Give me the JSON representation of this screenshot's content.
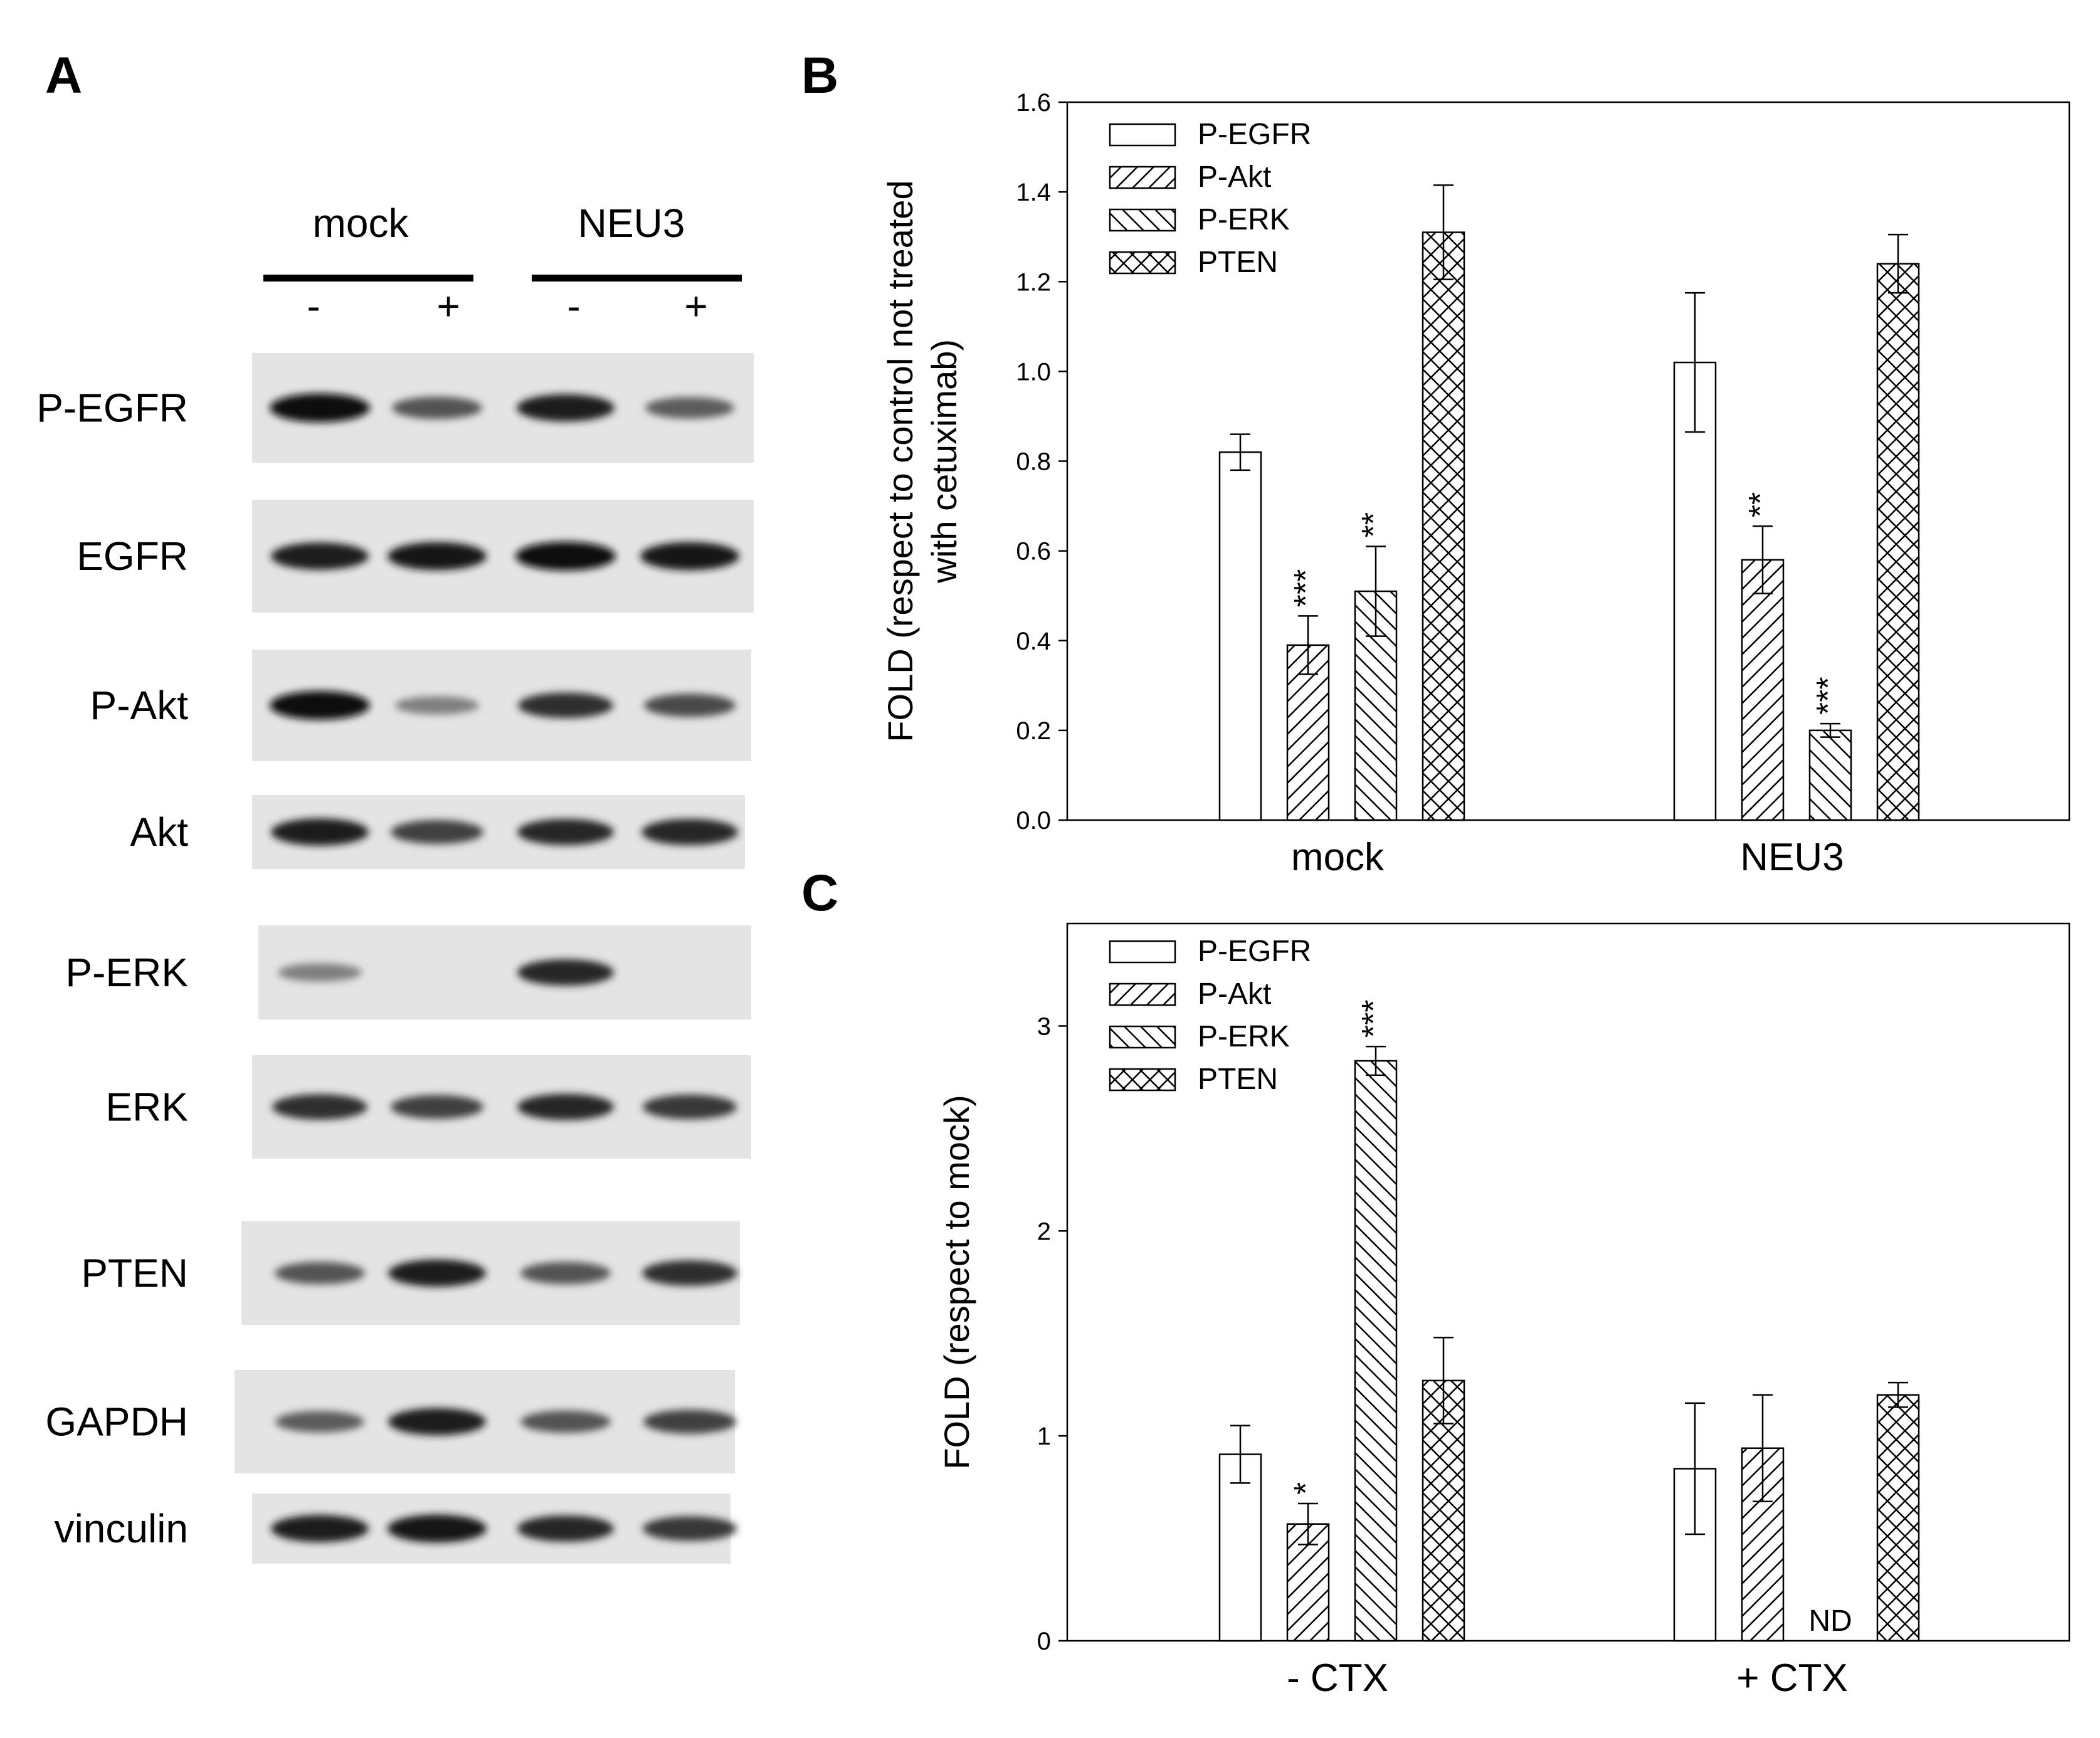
{
  "panel_labels": [
    "A",
    "B",
    "C"
  ],
  "blot": {
    "groups": [
      "mock",
      "NEU3"
    ],
    "treatment_signs": [
      "-",
      "+",
      "-",
      "+"
    ],
    "rows": [
      {
        "label": "P-EGFR",
        "bands": [
          1.0,
          0.6,
          0.9,
          0.55
        ]
      },
      {
        "label": "EGFR",
        "bands": [
          0.9,
          0.95,
          1.0,
          0.95
        ]
      },
      {
        "label": "P-Akt",
        "bands": [
          1.0,
          0.35,
          0.8,
          0.65
        ]
      },
      {
        "label": "Akt",
        "bands": [
          0.9,
          0.7,
          0.85,
          0.85
        ]
      },
      {
        "label": "P-ERK",
        "bands": [
          0.35,
          0.0,
          0.85,
          0.0
        ]
      },
      {
        "label": "ERK",
        "bands": [
          0.8,
          0.7,
          0.85,
          0.75
        ]
      },
      {
        "label": "PTEN",
        "bands": [
          0.6,
          0.9,
          0.6,
          0.8
        ]
      },
      {
        "label": "GAPDH",
        "bands": [
          0.55,
          0.9,
          0.6,
          0.7
        ]
      },
      {
        "label": "vinculin",
        "bands": [
          0.9,
          0.95,
          0.85,
          0.75
        ]
      }
    ]
  },
  "chart_data": [
    {
      "type": "bar",
      "panel": "B",
      "categories": [
        "mock",
        "NEU3"
      ],
      "ylabel": [
        "FOLD (respect to control not treated",
        "with cetuximab)"
      ],
      "ylim": [
        0,
        1.6
      ],
      "yticks": [
        "0.0",
        "0.2",
        "0.4",
        "0.6",
        "0.8",
        "1.0",
        "1.2",
        "1.4",
        "1.6"
      ],
      "legend_position": "top-left",
      "series": [
        {
          "name": "P-EGFR",
          "pattern": "none",
          "values": [
            0.82,
            1.02
          ],
          "errors": [
            0.04,
            0.155
          ],
          "annotations": [
            "",
            ""
          ]
        },
        {
          "name": "P-Akt",
          "pattern": "diag-right",
          "values": [
            0.39,
            0.58
          ],
          "errors": [
            0.065,
            0.075
          ],
          "annotations": [
            "***",
            "**"
          ]
        },
        {
          "name": "P-ERK",
          "pattern": "diag-left",
          "values": [
            0.51,
            0.2
          ],
          "errors": [
            0.1,
            0.015
          ],
          "annotations": [
            "**",
            "***"
          ]
        },
        {
          "name": "PTEN",
          "pattern": "cross",
          "values": [
            1.31,
            1.24
          ],
          "errors": [
            0.105,
            0.065
          ],
          "annotations": [
            "",
            ""
          ]
        }
      ]
    },
    {
      "type": "bar",
      "panel": "C",
      "categories": [
        "- CTX",
        "+ CTX"
      ],
      "ylabel": [
        "FOLD (respect to mock)"
      ],
      "ylim": [
        0,
        3.5
      ],
      "yticks": [
        "0",
        "1",
        "2",
        "3"
      ],
      "legend_position": "top-left",
      "series": [
        {
          "name": "P-EGFR",
          "pattern": "none",
          "values": [
            0.91,
            0.84
          ],
          "errors": [
            0.14,
            0.32
          ],
          "annotations": [
            "",
            ""
          ]
        },
        {
          "name": "P-Akt",
          "pattern": "diag-right",
          "values": [
            0.57,
            0.94
          ],
          "errors": [
            0.1,
            0.26
          ],
          "annotations": [
            "*",
            ""
          ]
        },
        {
          "name": "P-ERK",
          "pattern": "diag-left",
          "values": [
            2.83,
            null
          ],
          "errors": [
            0.07,
            null
          ],
          "annotations": [
            "***",
            "ND"
          ]
        },
        {
          "name": "PTEN",
          "pattern": "cross",
          "values": [
            1.27,
            1.2
          ],
          "errors": [
            0.21,
            0.06
          ],
          "annotations": [
            "",
            ""
          ]
        }
      ]
    }
  ]
}
